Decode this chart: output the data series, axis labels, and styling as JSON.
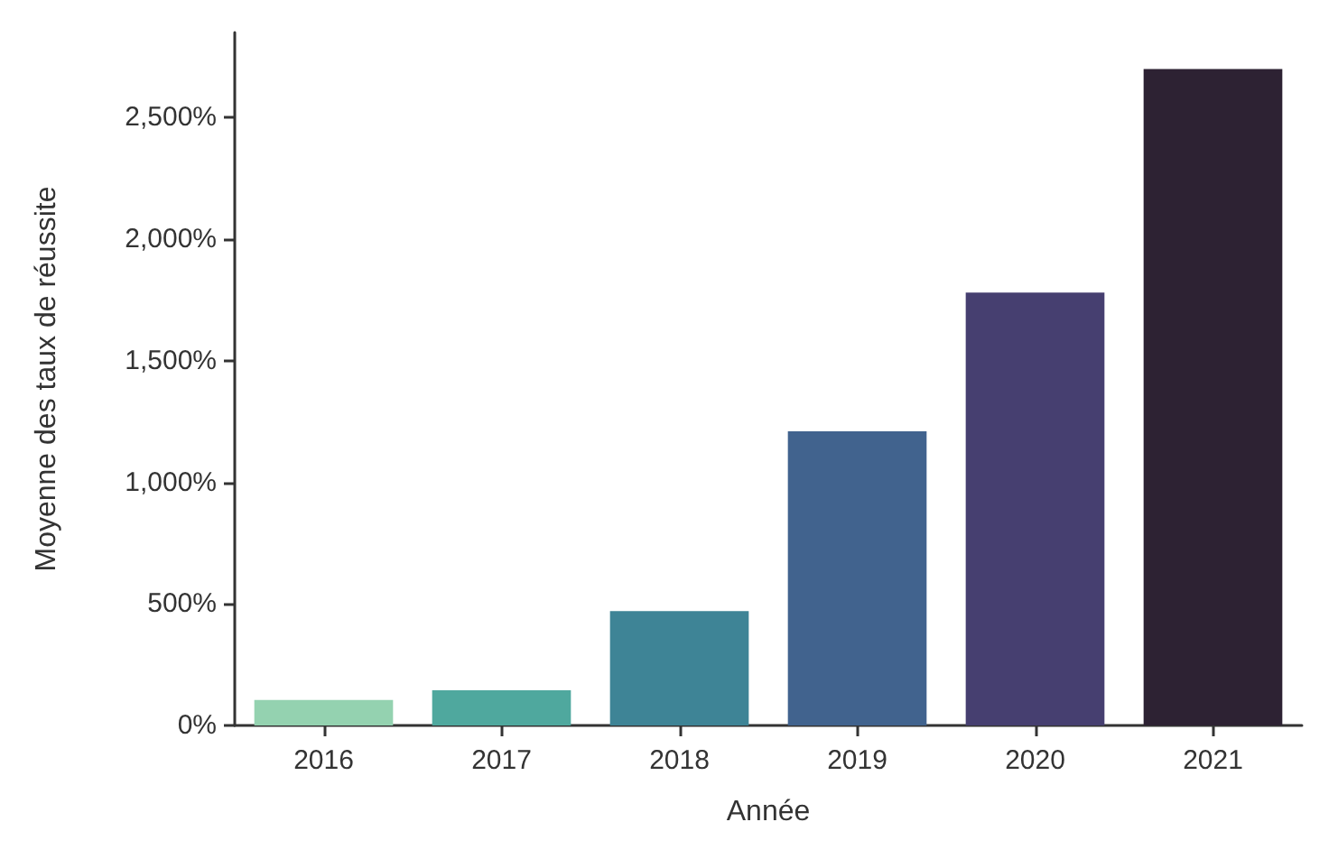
{
  "chart_data": {
    "type": "bar",
    "xlabel": "Année",
    "ylabel": "Moyenne des taux de réussite",
    "categories": [
      "2016",
      "2017",
      "2018",
      "2019",
      "2020",
      "2021"
    ],
    "values": [
      105,
      145,
      470,
      1210,
      1780,
      2700
    ],
    "colors": [
      "#94d2b0",
      "#4fa89e",
      "#3e8496",
      "#41638e",
      "#463f70",
      "#2d2233"
    ],
    "ylim": [
      0,
      2850
    ],
    "yticks": [
      {
        "value": 0,
        "label": "0%"
      },
      {
        "value": 500,
        "label": "500%"
      },
      {
        "value": 1000,
        "label": "1,000%"
      },
      {
        "value": 1500,
        "label": "1,500%"
      },
      {
        "value": 2000,
        "label": "2,000%"
      },
      {
        "value": 2500,
        "label": "2,500%"
      }
    ],
    "grid": false
  }
}
